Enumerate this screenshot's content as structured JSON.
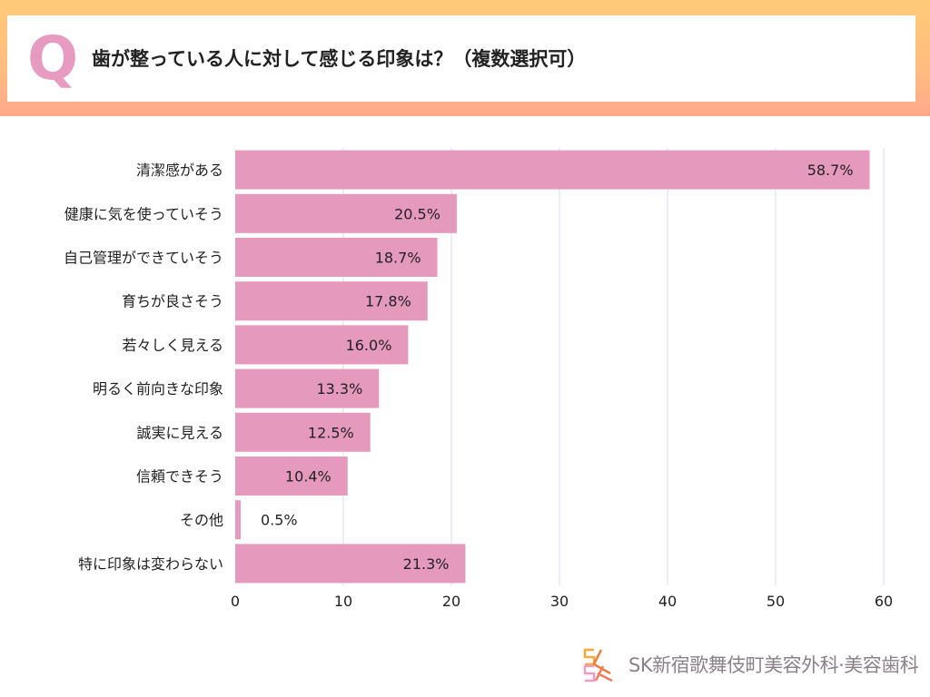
{
  "header": {
    "q_mark": "Q",
    "title": "歯が整っている人に対して感じる印象は？（複数選択可）"
  },
  "chart_data": {
    "type": "bar",
    "orientation": "horizontal",
    "categories": [
      "清潔感がある",
      "健康に気を使っていそう",
      "自己管理ができていそう",
      "育ちが良さそう",
      "若々しく見える",
      "明るく前向きな印象",
      "誠実に見える",
      "信頼できそう",
      "その他",
      "特に印象は変わらない"
    ],
    "values": [
      58.7,
      20.5,
      18.7,
      17.8,
      16.0,
      13.3,
      12.5,
      10.4,
      0.5,
      21.3
    ],
    "data_labels": [
      "58.7%",
      "20.5%",
      "18.7%",
      "17.8%",
      "16.0%",
      "13.3%",
      "12.5%",
      "10.4%",
      "0.5%",
      "21.3%"
    ],
    "xlim": [
      0,
      60
    ],
    "xticks": [
      "0",
      "10",
      "20",
      "30",
      "40",
      "50",
      "60"
    ],
    "grid": true,
    "bar_color": "#e599bd",
    "grid_color": "#dcd8e8",
    "title": "",
    "xlabel": "",
    "ylabel": ""
  },
  "footer": {
    "logo_mark": "SK",
    "logo_text": "SK新宿歌舞伎町美容外科·美容歯科"
  },
  "colors": {
    "frame_top": "#ffcb78",
    "frame_bottom": "#ffa98a",
    "accent_pink": "#e89bc0"
  }
}
